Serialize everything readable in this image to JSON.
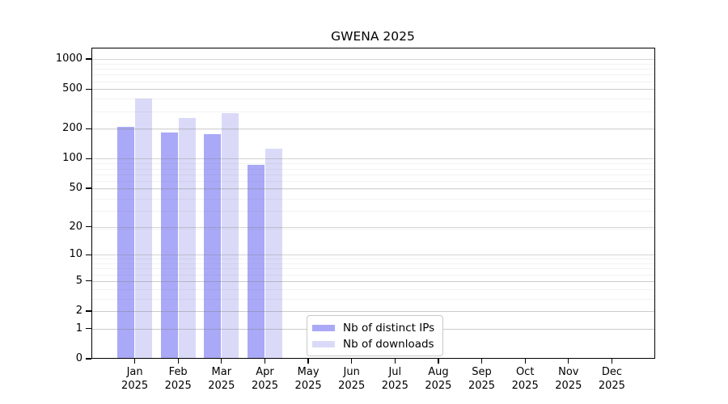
{
  "chart_data": {
    "type": "bar",
    "title": "GWENA 2025",
    "categories": [
      "Jan",
      "Feb",
      "Mar",
      "Apr",
      "May",
      "Jun",
      "Jul",
      "Aug",
      "Sep",
      "Oct",
      "Nov",
      "Dec"
    ],
    "category_year": "2025",
    "series": [
      {
        "name": "Nb of distinct IPs",
        "color": "#a9a9f7",
        "values": [
          208,
          182,
          176,
          86,
          0,
          0,
          0,
          0,
          0,
          0,
          0,
          0
        ]
      },
      {
        "name": "Nb of downloads",
        "color": "#dadaf8",
        "values": [
          404,
          258,
          287,
          126,
          0,
          0,
          0,
          0,
          0,
          0,
          0,
          0
        ]
      }
    ],
    "y_ticks": [
      0,
      1,
      2,
      5,
      10,
      20,
      50,
      100,
      200,
      500,
      1000
    ],
    "y_scale": "log10(value+1)",
    "ylim": [
      0,
      1300
    ],
    "xlabel": "",
    "ylabel": "",
    "grid": true,
    "legend_position": "bottom-center"
  }
}
